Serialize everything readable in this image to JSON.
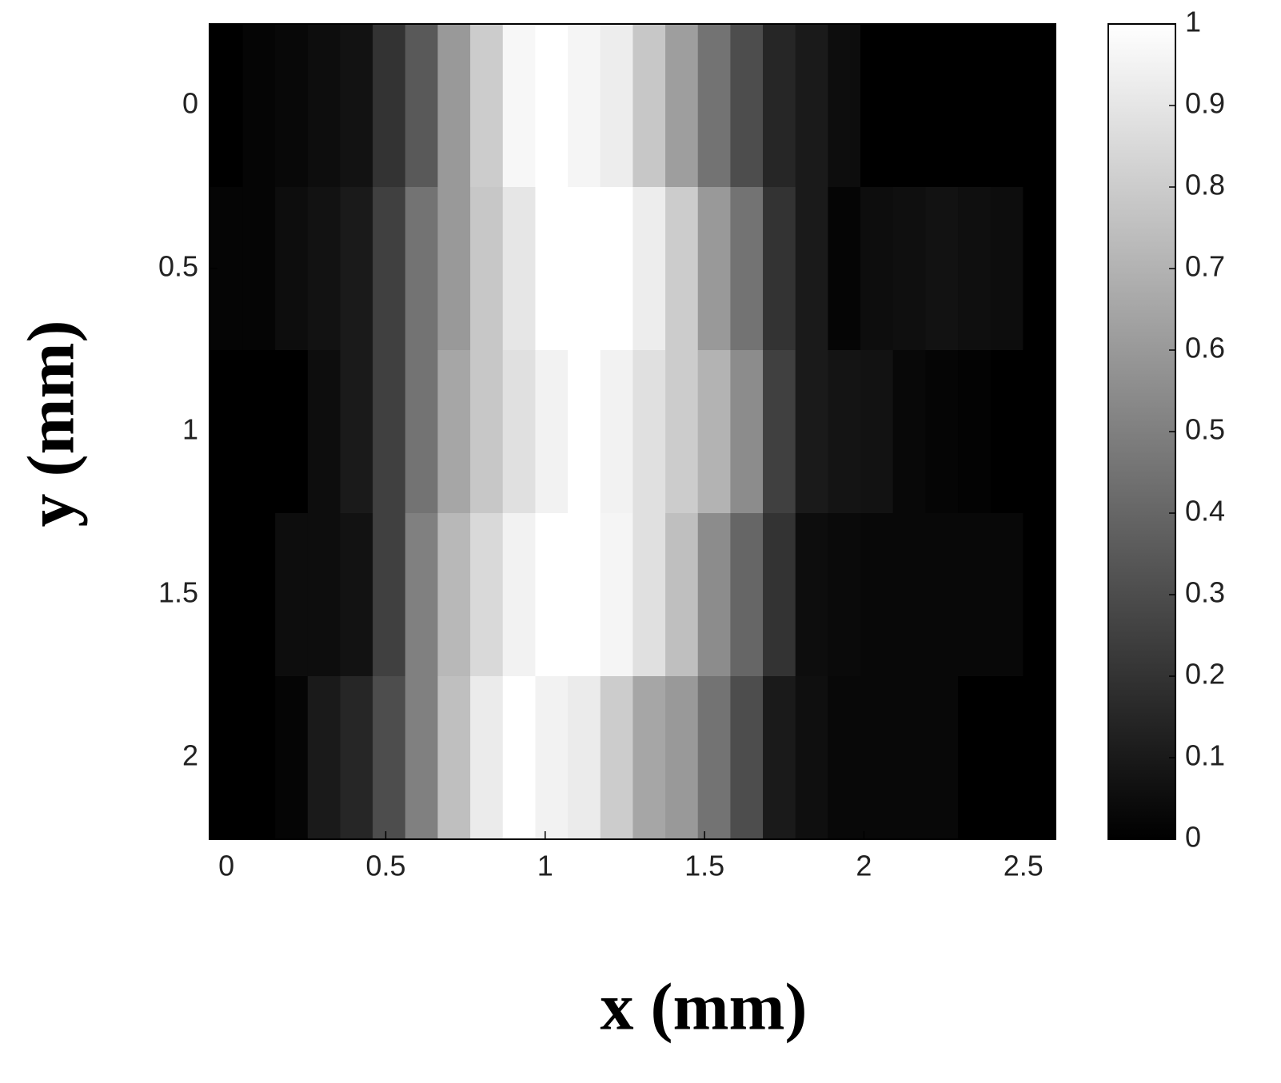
{
  "chart_data": {
    "type": "heatmap",
    "x_label": "x (mm)",
    "y_label": "y (mm)",
    "x": [
      0,
      0.102,
      0.204,
      0.306,
      0.408,
      0.51,
      0.612,
      0.714,
      0.816,
      0.918,
      1.02,
      1.122,
      1.224,
      1.326,
      1.428,
      1.53,
      1.632,
      1.734,
      1.836,
      1.938,
      2.04,
      2.142,
      2.244,
      2.346,
      2.448,
      2.55
    ],
    "y": [
      0,
      0.5,
      1,
      1.5,
      2
    ],
    "z": [
      [
        0,
        0.02,
        0.03,
        0.05,
        0.07,
        0.2,
        0.35,
        0.6,
        0.8,
        0.97,
        1,
        0.96,
        0.93,
        0.78,
        0.62,
        0.45,
        0.3,
        0.15,
        0.1,
        0.05,
        0,
        0,
        0,
        0,
        0,
        0
      ],
      [
        0.02,
        0.02,
        0.05,
        0.07,
        0.1,
        0.25,
        0.45,
        0.6,
        0.78,
        0.9,
        1,
        1,
        1,
        0.93,
        0.8,
        0.6,
        0.45,
        0.2,
        0.1,
        0.02,
        0.05,
        0.06,
        0.07,
        0.06,
        0.05,
        0
      ],
      [
        0,
        0,
        0,
        0.05,
        0.1,
        0.25,
        0.45,
        0.65,
        0.78,
        0.88,
        0.95,
        1,
        0.95,
        0.88,
        0.8,
        0.7,
        0.55,
        0.25,
        0.1,
        0.08,
        0.07,
        0.03,
        0.02,
        0.01,
        0,
        0
      ],
      [
        0,
        0,
        0.05,
        0.05,
        0.07,
        0.25,
        0.5,
        0.72,
        0.85,
        0.95,
        1,
        1,
        0.96,
        0.88,
        0.75,
        0.55,
        0.4,
        0.2,
        0.05,
        0.04,
        0.03,
        0.03,
        0.03,
        0.03,
        0.03,
        0
      ],
      [
        0,
        0,
        0.02,
        0.1,
        0.15,
        0.3,
        0.5,
        0.75,
        0.92,
        1,
        0.95,
        0.92,
        0.8,
        0.65,
        0.6,
        0.45,
        0.3,
        0.1,
        0.06,
        0.03,
        0.03,
        0.03,
        0.03,
        0,
        0,
        0
      ]
    ],
    "xlim": [
      -0.053,
      2.601
    ],
    "ylim": [
      -0.25,
      2.25
    ],
    "y_reversed": true,
    "xticks": [
      0,
      0.5,
      1,
      1.5,
      2,
      2.5
    ],
    "yticks": [
      0,
      0.5,
      1,
      1.5,
      2
    ],
    "colormap": "gray",
    "zlim": [
      0,
      1
    ],
    "colorbar_ticks": [
      0,
      0.1,
      0.2,
      0.3,
      0.4,
      0.5,
      0.6,
      0.7,
      0.8,
      0.9,
      1
    ]
  }
}
